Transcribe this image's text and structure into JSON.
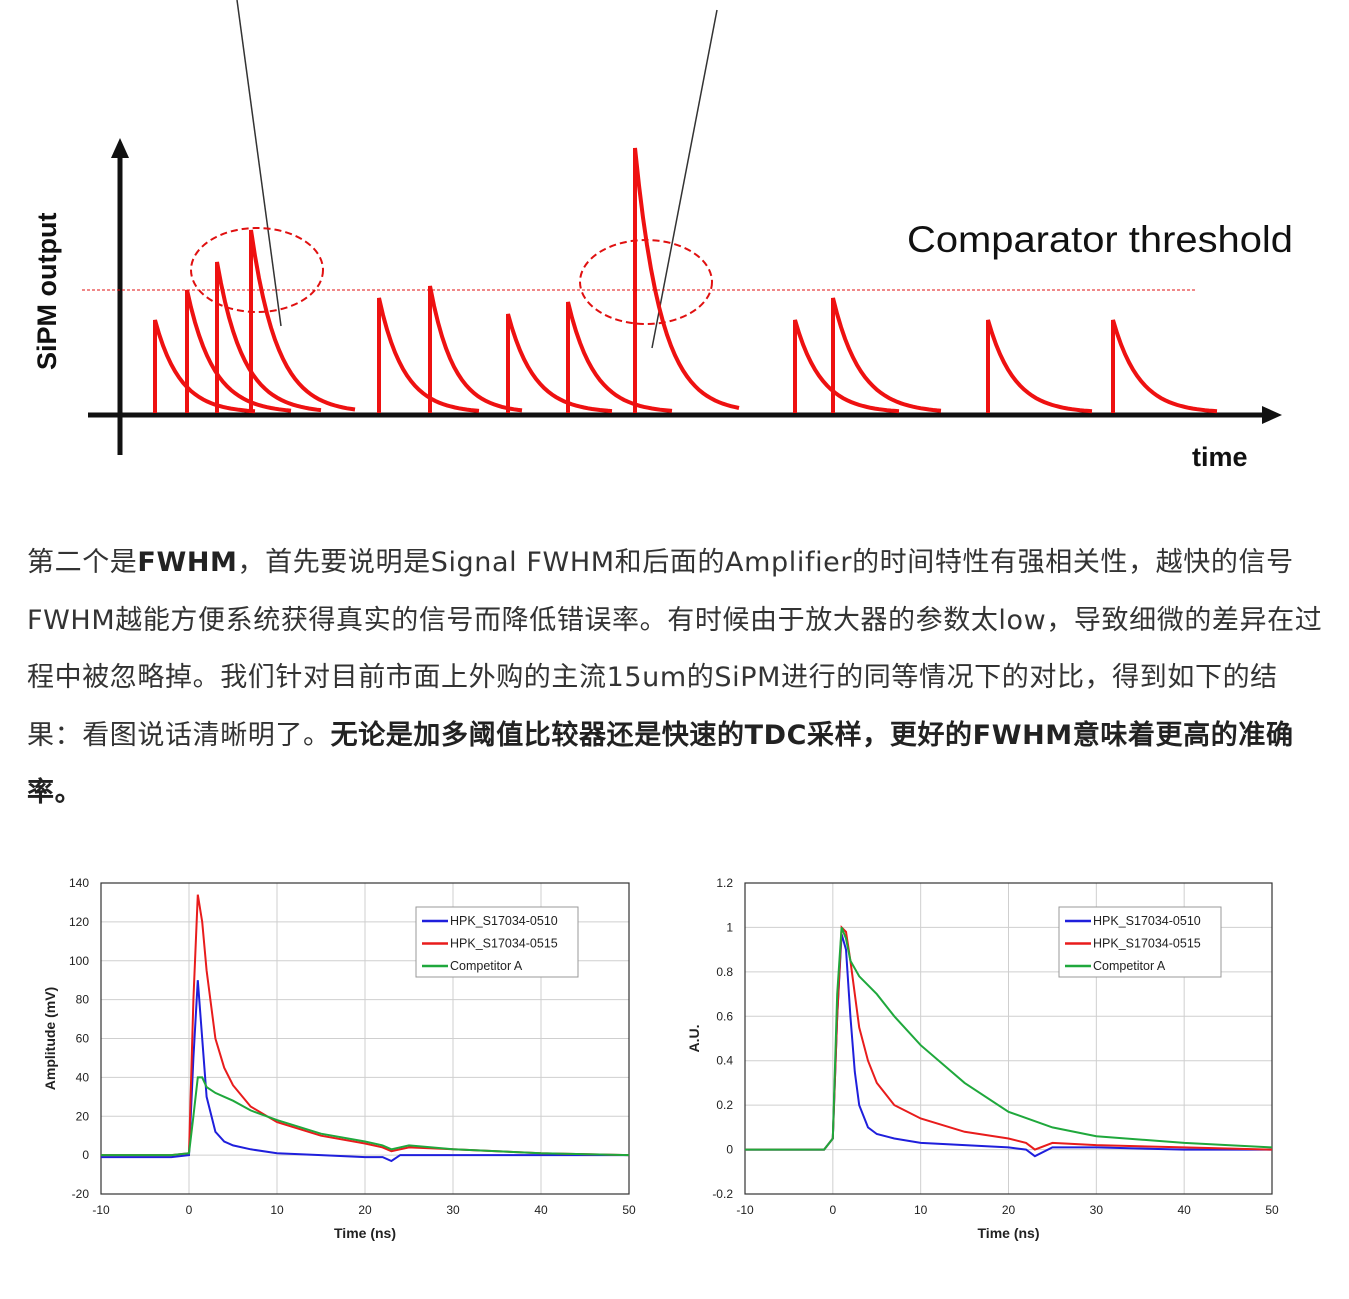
{
  "diagram": {
    "y_axis_label": "SiPM output",
    "x_axis_label": "time",
    "threshold_label": "Comparator threshold"
  },
  "article": {
    "s1": "第二个是",
    "s2": "FWHM",
    "s3": "，首先要说明是Signal FWHM和后面的Amplifier的时间特性有强相关性，越快的信号FWHM越能方便系统获得真实的信号而降低错误率。有时候由于放大器的参数太low，导致细微的差异在过程中被忽略掉。我们针对目前市面上外购的主流15um的SiPM进行的同等情况下的对比，得到如下的结果：看图说话清晰明了。",
    "s4": "无论是加多阈值比较器还是快速的TDC采样，更好的FWHM意味着更高的准确率。"
  },
  "chart_data": [
    {
      "type": "line",
      "xlabel": "Time (ns)",
      "ylabel": "Amplitude (mV)",
      "xlim": [
        -10,
        50
      ],
      "ylim": [
        -20,
        140
      ],
      "xticks": [
        -10,
        0,
        10,
        20,
        30,
        40,
        50
      ],
      "yticks": [
        -20,
        0,
        20,
        40,
        60,
        80,
        100,
        120,
        140
      ],
      "grid": true,
      "legend_position": "top-right",
      "series": [
        {
          "name": "HPK_S17034-0510",
          "color": "#1f1fdc",
          "x": [
            -10,
            -2,
            0,
            0.5,
            1,
            1.5,
            2,
            3,
            4,
            5,
            7,
            10,
            15,
            20,
            22,
            23,
            24,
            30,
            40,
            50
          ],
          "y": [
            -1,
            -1,
            0,
            50,
            90,
            60,
            30,
            12,
            7,
            5,
            3,
            1,
            0,
            -1,
            -1,
            -3,
            0,
            0,
            0,
            0
          ]
        },
        {
          "name": "HPK_S17034-0515",
          "color": "#e81c1c",
          "x": [
            -10,
            -2,
            0,
            0.5,
            1,
            1.5,
            2,
            3,
            4,
            5,
            7,
            10,
            15,
            20,
            22,
            23,
            25,
            30,
            35,
            40,
            50
          ],
          "y": [
            0,
            0,
            1,
            80,
            134,
            120,
            95,
            60,
            45,
            36,
            25,
            17,
            10,
            6,
            4,
            2,
            4,
            3,
            2,
            1,
            0
          ]
        },
        {
          "name": "Competitor A",
          "color": "#1fa83c",
          "x": [
            -10,
            -2,
            0,
            0.5,
            1,
            1.5,
            2,
            3,
            4,
            5,
            7,
            10,
            15,
            20,
            22,
            23,
            25,
            30,
            40,
            50
          ],
          "y": [
            0,
            0,
            1,
            20,
            40,
            40,
            35,
            32,
            30,
            28,
            23,
            18,
            11,
            7,
            5,
            3,
            5,
            3,
            1,
            0
          ]
        }
      ]
    },
    {
      "type": "line",
      "xlabel": "Time (ns)",
      "ylabel": "A.U.",
      "xlim": [
        -10,
        50
      ],
      "ylim": [
        -0.2,
        1.2
      ],
      "xticks": [
        -10,
        0,
        10,
        20,
        30,
        40,
        50
      ],
      "yticks": [
        "-0.2",
        "0",
        "0.2",
        "0.4",
        "0.6",
        "0.8",
        "1",
        "1.2"
      ],
      "grid": true,
      "legend_position": "top-right",
      "series": [
        {
          "name": "HPK_S17034-0510",
          "color": "#1f1fdc",
          "x": [
            -10,
            -1,
            0,
            0.5,
            1,
            1.5,
            2,
            2.5,
            3,
            4,
            5,
            7,
            10,
            15,
            20,
            22,
            23,
            25,
            30,
            40,
            50
          ],
          "y": [
            0,
            0,
            0.05,
            0.6,
            0.97,
            0.9,
            0.6,
            0.35,
            0.2,
            0.1,
            0.07,
            0.05,
            0.03,
            0.02,
            0.01,
            0,
            -0.03,
            0.01,
            0.01,
            0,
            0
          ]
        },
        {
          "name": "HPK_S17034-0515",
          "color": "#e81c1c",
          "x": [
            -10,
            -1,
            0,
            0.5,
            1,
            1.5,
            2,
            3,
            4,
            5,
            7,
            10,
            15,
            20,
            22,
            23,
            25,
            30,
            40,
            50
          ],
          "y": [
            0,
            0,
            0.05,
            0.6,
            1.0,
            0.98,
            0.85,
            0.55,
            0.4,
            0.3,
            0.2,
            0.14,
            0.08,
            0.05,
            0.03,
            0,
            0.03,
            0.02,
            0.01,
            0
          ]
        },
        {
          "name": "Competitor A",
          "color": "#1fa83c",
          "x": [
            -10,
            -1,
            0,
            0.5,
            1,
            1.5,
            2,
            3,
            5,
            7,
            10,
            15,
            20,
            25,
            30,
            40,
            50
          ],
          "y": [
            0,
            0,
            0.05,
            0.7,
            1.0,
            0.95,
            0.85,
            0.78,
            0.7,
            0.6,
            0.47,
            0.3,
            0.17,
            0.1,
            0.06,
            0.03,
            0.01
          ]
        }
      ]
    }
  ]
}
